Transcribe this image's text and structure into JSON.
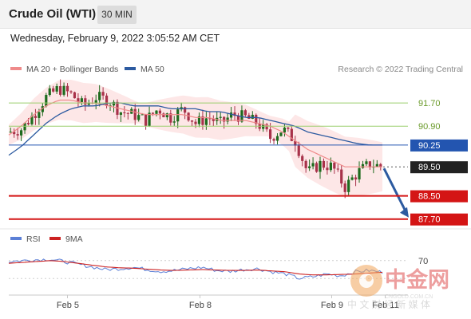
{
  "header": {
    "title": "Crude Oil (WTI)",
    "timeframe": "30 MIN"
  },
  "datetime": "Wednesday, February 9, 2022 3:05:52 AM CET",
  "legend": {
    "ma20": "MA 20 + Bollinger Bands",
    "ma50": "MA 50",
    "copyright": "Research © 2022 Trading Central"
  },
  "rsi_legend": {
    "rsi": "RSI",
    "ma9": "9MA"
  },
  "watermark": {
    "brand": "中金网",
    "sub": "中 文 财 经 新 媒 体",
    "url": "CNGOLD.COM.CN"
  },
  "colors": {
    "ma20": "#ef8a8a",
    "ma50": "#2c5aa0",
    "band_fill": "#fde3e3",
    "candle_up": "#1e6b1e",
    "candle_down": "#a8324a",
    "resistance": "#9ccf6e",
    "pivot": "#2355b0",
    "support": "#d41515",
    "rsi_line": "#5b7fd6",
    "rsi_ma": "#cc2222",
    "arrow": "#2c5aa0"
  },
  "chart_data": {
    "type": "candlestick",
    "title": "Crude Oil (WTI)",
    "timeframe": "30 MIN",
    "x_tick_labels": [
      "Feb 5",
      "Feb 8",
      "Feb 9",
      "Feb 11"
    ],
    "ylim": [
      87.5,
      92.5
    ],
    "levels": [
      {
        "label": "91.70",
        "value": 91.7,
        "kind": "resistance"
      },
      {
        "label": "90.90",
        "value": 90.9,
        "kind": "resistance"
      },
      {
        "label": "90.25",
        "value": 90.25,
        "kind": "pivot"
      },
      {
        "label": "89.50",
        "value": 89.5,
        "kind": "last"
      },
      {
        "label": "88.50",
        "value": 88.5,
        "kind": "support"
      },
      {
        "label": "87.70",
        "value": 87.7,
        "kind": "support"
      }
    ],
    "projection": {
      "from": 89.5,
      "to": 87.7,
      "direction": "down"
    },
    "close_path": [
      90.7,
      90.8,
      91.3,
      91.9,
      92.2,
      92.0,
      91.6,
      91.9,
      91.8,
      91.4,
      91.3,
      91.1,
      91.5,
      91.2,
      91.5,
      91.0,
      91.2,
      91.0,
      91.3,
      91.2,
      91.0,
      90.5,
      90.8,
      90.4,
      89.3,
      89.6,
      89.5,
      88.8,
      89.3,
      89.6,
      89.5
    ],
    "ma20_path": [
      90.6,
      90.9,
      91.3,
      91.6,
      91.8,
      91.8,
      91.7,
      91.7,
      91.6,
      91.5,
      91.4,
      91.3,
      91.3,
      91.3,
      91.3,
      91.2,
      91.2,
      91.1,
      91.1,
      91.1,
      91.0,
      90.9,
      90.7,
      90.4,
      90.1,
      89.9,
      89.7,
      89.5,
      89.5,
      89.5,
      89.5
    ],
    "ma50_path": [
      89.9,
      90.2,
      90.6,
      91.0,
      91.3,
      91.5,
      91.6,
      91.6,
      91.7,
      91.7,
      91.6,
      91.6,
      91.6,
      91.5,
      91.5,
      91.5,
      91.4,
      91.4,
      91.3,
      91.2,
      91.2,
      91.1,
      91.0,
      90.9,
      90.7,
      90.6,
      90.5,
      90.4,
      90.3,
      90.25,
      90.25
    ],
    "rsi": {
      "ylim": [
        0,
        100
      ],
      "reference_levels": [
        30,
        70
      ],
      "tick_labels": [
        "70"
      ],
      "rsi_path": [
        68,
        70,
        72,
        73,
        68,
        62,
        56,
        50,
        52,
        55,
        50,
        46,
        48,
        52,
        55,
        48,
        46,
        50,
        52,
        45,
        40,
        30,
        34,
        40,
        36,
        45,
        48,
        44
      ],
      "ma9_path": [
        64,
        66,
        68,
        70,
        68,
        64,
        60,
        56,
        54,
        53,
        51,
        49,
        48,
        49,
        50,
        49,
        48,
        48,
        49,
        47,
        45,
        40,
        38,
        38,
        39,
        40,
        42,
        44
      ]
    }
  }
}
